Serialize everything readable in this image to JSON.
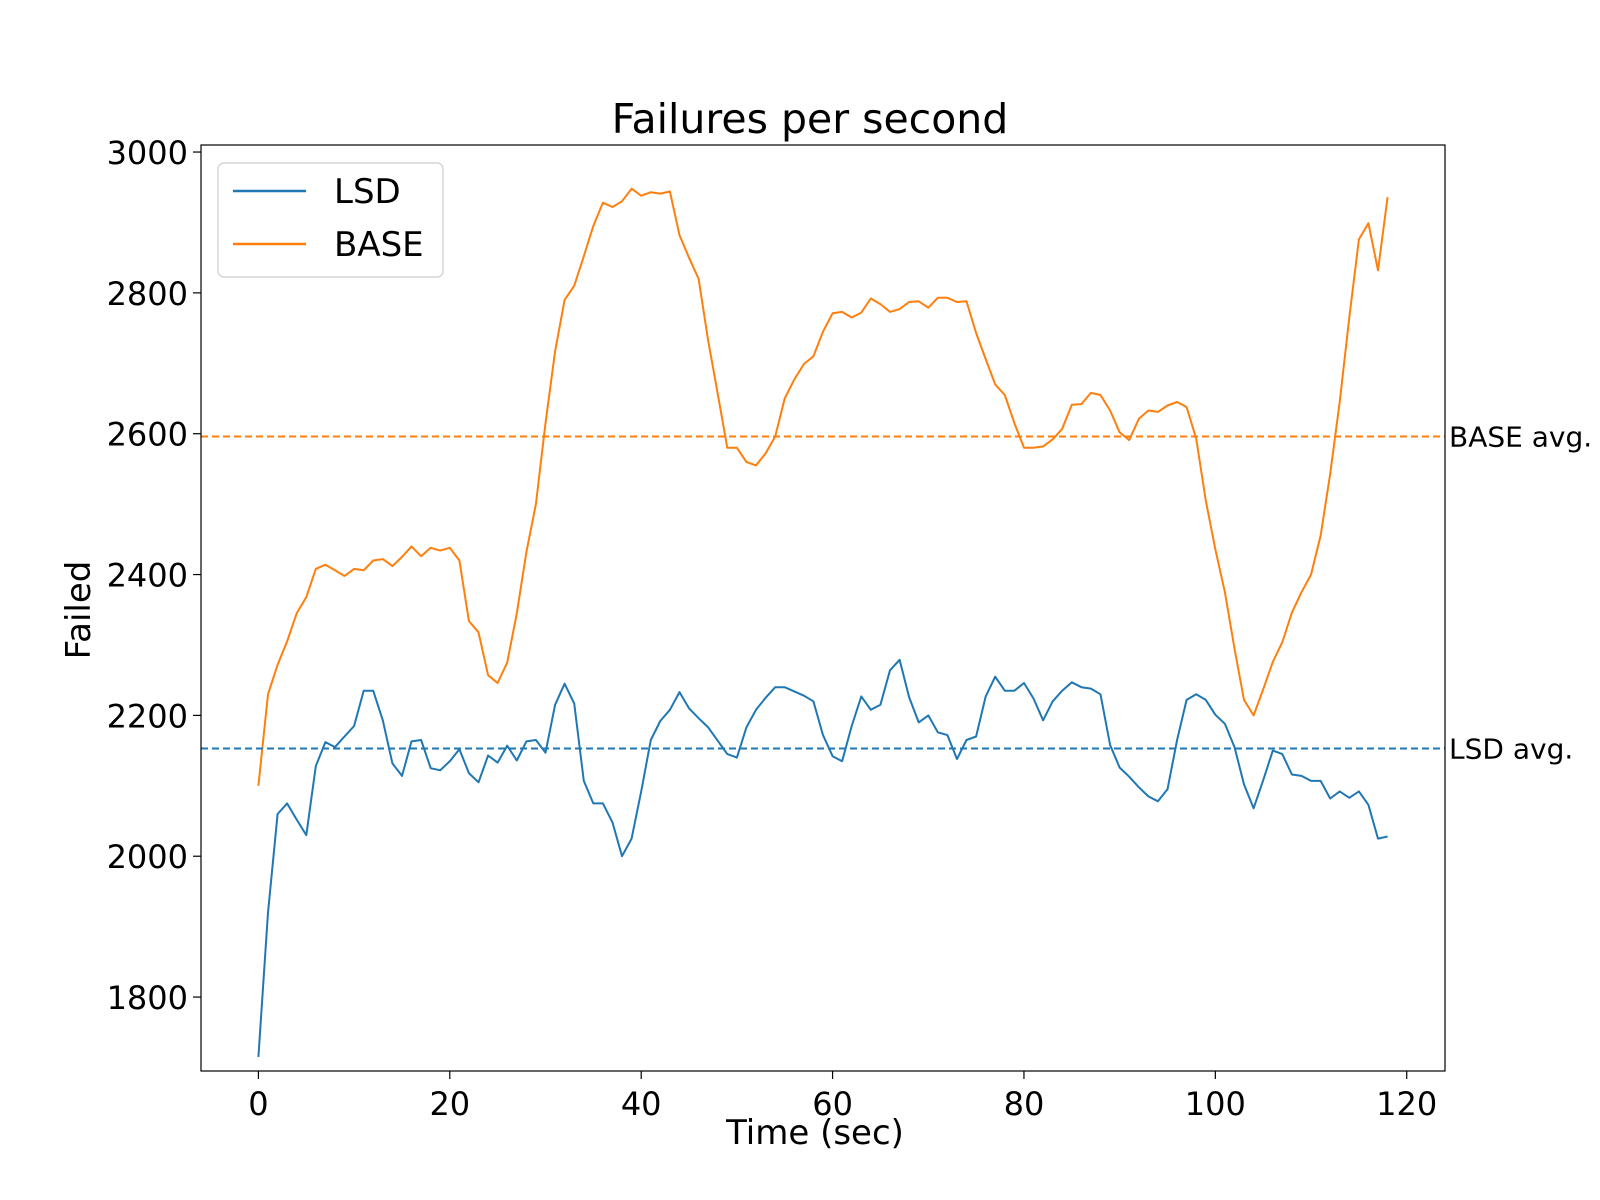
{
  "chart_data": {
    "type": "line",
    "title": "Failures per second",
    "xlabel": "Time (sec)",
    "ylabel": "Failed",
    "xlim": [
      -6,
      124
    ],
    "ylim": [
      1695,
      3010
    ],
    "xticks": [
      0,
      20,
      40,
      60,
      80,
      100,
      120
    ],
    "yticks": [
      1800,
      2000,
      2200,
      2400,
      2600,
      2800,
      3000
    ],
    "grid": false,
    "legend_placement": "top-left",
    "series": [
      {
        "name": "LSD",
        "color": "#1f77b4",
        "x": [
          0,
          1,
          2,
          3,
          4,
          5,
          6,
          7,
          8,
          9,
          10,
          11,
          12,
          13,
          14,
          15,
          16,
          17,
          18,
          19,
          20,
          21,
          22,
          23,
          24,
          25,
          26,
          27,
          28,
          29,
          30,
          31,
          32,
          33,
          34,
          35,
          36,
          37,
          38,
          39,
          40,
          41,
          42,
          43,
          44,
          45,
          46,
          47,
          48,
          49,
          50,
          51,
          52,
          53,
          54,
          55,
          56,
          57,
          58,
          59,
          60,
          61,
          62,
          63,
          64,
          65,
          66,
          67,
          68,
          69,
          70,
          71,
          72,
          73,
          74,
          75,
          76,
          77,
          78,
          79,
          80,
          81,
          82,
          83,
          84,
          85,
          86,
          87,
          88,
          89,
          90,
          91,
          92,
          93,
          94,
          95,
          96,
          97,
          98,
          99,
          100,
          101,
          102,
          103,
          104,
          105,
          106,
          107,
          108,
          109,
          110,
          111,
          112,
          113,
          114,
          115,
          116,
          117,
          118
        ],
        "values": [
          1715,
          1920,
          2060,
          2075,
          2052,
          2030,
          2128,
          2162,
          2155,
          2170,
          2185,
          2235,
          2235,
          2193,
          2132,
          2114,
          2163,
          2165,
          2125,
          2122,
          2135,
          2152,
          2118,
          2105,
          2143,
          2133,
          2157,
          2136,
          2163,
          2165,
          2147,
          2215,
          2245,
          2217,
          2107,
          2075,
          2075,
          2048,
          2000,
          2025,
          2092,
          2165,
          2192,
          2208,
          2233,
          2210,
          2196,
          2183,
          2164,
          2145,
          2140,
          2183,
          2208,
          2225,
          2240,
          2240,
          2234,
          2228,
          2220,
          2172,
          2142,
          2135,
          2185,
          2227,
          2208,
          2215,
          2264,
          2279,
          2226,
          2190,
          2200,
          2176,
          2172,
          2138,
          2165,
          2170,
          2227,
          2255,
          2235,
          2235,
          2246,
          2224,
          2193,
          2220,
          2235,
          2247,
          2240,
          2238,
          2230,
          2158,
          2126,
          2113,
          2098,
          2085,
          2078,
          2095,
          2165,
          2222,
          2230,
          2222,
          2201,
          2188,
          2155,
          2102,
          2068,
          2108,
          2150,
          2145,
          2116,
          2114,
          2107,
          2107,
          2082,
          2092,
          2083,
          2092,
          2073,
          2025,
          2028
        ]
      },
      {
        "name": "BASE",
        "color": "#ff7f0e",
        "x": [
          0,
          1,
          2,
          3,
          4,
          5,
          6,
          7,
          8,
          9,
          10,
          11,
          12,
          13,
          14,
          15,
          16,
          17,
          18,
          19,
          20,
          21,
          22,
          23,
          24,
          25,
          26,
          27,
          28,
          29,
          30,
          31,
          32,
          33,
          34,
          35,
          36,
          37,
          38,
          39,
          40,
          41,
          42,
          43,
          44,
          45,
          46,
          47,
          48,
          49,
          50,
          51,
          52,
          53,
          54,
          55,
          56,
          57,
          58,
          59,
          60,
          61,
          62,
          63,
          64,
          65,
          66,
          67,
          68,
          69,
          70,
          71,
          72,
          73,
          74,
          75,
          76,
          77,
          78,
          79,
          80,
          81,
          82,
          83,
          84,
          85,
          86,
          87,
          88,
          89,
          90,
          91,
          92,
          93,
          94,
          95,
          96,
          97,
          98,
          99,
          100,
          101,
          102,
          103,
          104,
          105,
          106,
          107,
          108,
          109,
          110,
          111,
          112,
          113,
          114,
          115,
          116,
          117,
          118
        ],
        "values": [
          2100,
          2230,
          2272,
          2305,
          2345,
          2368,
          2408,
          2414,
          2406,
          2398,
          2408,
          2406,
          2420,
          2422,
          2412,
          2425,
          2440,
          2426,
          2438,
          2434,
          2438,
          2420,
          2334,
          2318,
          2257,
          2246,
          2275,
          2345,
          2432,
          2500,
          2615,
          2717,
          2790,
          2810,
          2852,
          2895,
          2928,
          2922,
          2930,
          2948,
          2938,
          2943,
          2941,
          2944,
          2882,
          2850,
          2820,
          2732,
          2657,
          2580,
          2580,
          2560,
          2555,
          2572,
          2596,
          2650,
          2677,
          2699,
          2710,
          2745,
          2771,
          2773,
          2765,
          2772,
          2792,
          2784,
          2773,
          2777,
          2787,
          2788,
          2779,
          2793,
          2793,
          2787,
          2788,
          2743,
          2706,
          2670,
          2655,
          2615,
          2580,
          2580,
          2582,
          2592,
          2607,
          2641,
          2642,
          2658,
          2655,
          2633,
          2602,
          2591,
          2621,
          2633,
          2631,
          2640,
          2645,
          2638,
          2593,
          2505,
          2436,
          2375,
          2295,
          2222,
          2200,
          2237,
          2276,
          2304,
          2346,
          2375,
          2400,
          2455,
          2543,
          2645,
          2765,
          2876,
          2899,
          2832,
          2936
        ]
      }
    ],
    "reference_lines": [
      {
        "label": "BASE avg.",
        "value": 2596,
        "color": "#ff7f0e",
        "style": "dashed"
      },
      {
        "label": "LSD avg.",
        "value": 2153,
        "color": "#1f77b4",
        "style": "dashed"
      }
    ]
  }
}
